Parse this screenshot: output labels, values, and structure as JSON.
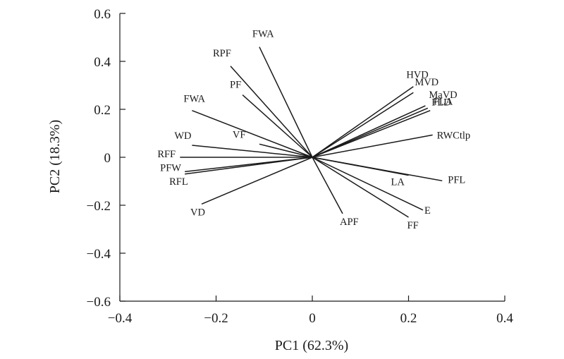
{
  "chart_data": {
    "type": "scatter",
    "subtype": "pca-loading-biplot",
    "xlabel": "PC1 (62.3%)",
    "ylabel": "PC2 (18.3%)",
    "xlim": [
      -0.4,
      0.4
    ],
    "ylim": [
      -0.6,
      0.6
    ],
    "xticks": [
      -0.4,
      -0.2,
      0,
      0.2,
      0.4
    ],
    "xtick_labels": [
      "−0.4",
      "−0.2",
      "0",
      "0.2",
      "0.4"
    ],
    "yticks": [
      -0.6,
      -0.4,
      -0.2,
      0,
      0.2,
      0.4,
      0.6
    ],
    "ytick_labels": [
      "−0.6",
      "−0.4",
      "−0.2",
      "0",
      "0.2",
      "0.4",
      "0.6"
    ],
    "grid": false,
    "line_color": "#1a1a1a",
    "vectors": [
      {
        "label": "FWA",
        "x": -0.11,
        "y": 0.46
      },
      {
        "label": "RPF",
        "x": -0.17,
        "y": 0.38
      },
      {
        "label": "PF",
        "x": -0.145,
        "y": 0.26
      },
      {
        "label": "FWA",
        "x": -0.25,
        "y": 0.195
      },
      {
        "label": "WD",
        "x": -0.25,
        "y": 0.05
      },
      {
        "label": "VF",
        "x": -0.11,
        "y": 0.055
      },
      {
        "label": "RFF",
        "x": -0.275,
        "y": 0.0
      },
      {
        "label": "PFW",
        "x": -0.265,
        "y": -0.06
      },
      {
        "label": "RFL",
        "x": -0.265,
        "y": -0.07
      },
      {
        "label": "VD",
        "x": -0.23,
        "y": -0.195
      },
      {
        "label": "APF",
        "x": 0.063,
        "y": -0.235
      },
      {
        "label": "HVD",
        "x": 0.21,
        "y": 0.295
      },
      {
        "label": "MVD",
        "x": 0.21,
        "y": 0.27
      },
      {
        "label": "MaVD",
        "x": 0.235,
        "y": 0.215
      },
      {
        "label": "FLA",
        "x": 0.24,
        "y": 0.205
      },
      {
        "label": "FLD",
        "x": 0.245,
        "y": 0.195
      },
      {
        "label": "RWCtlp",
        "x": 0.25,
        "y": 0.093
      },
      {
        "label": "PFL",
        "x": 0.27,
        "y": -0.098
      },
      {
        "label": "LA",
        "x": 0.2,
        "y": -0.075
      },
      {
        "label": "E",
        "x": 0.23,
        "y": -0.22
      },
      {
        "label": "FF",
        "x": 0.2,
        "y": -0.25
      }
    ]
  }
}
